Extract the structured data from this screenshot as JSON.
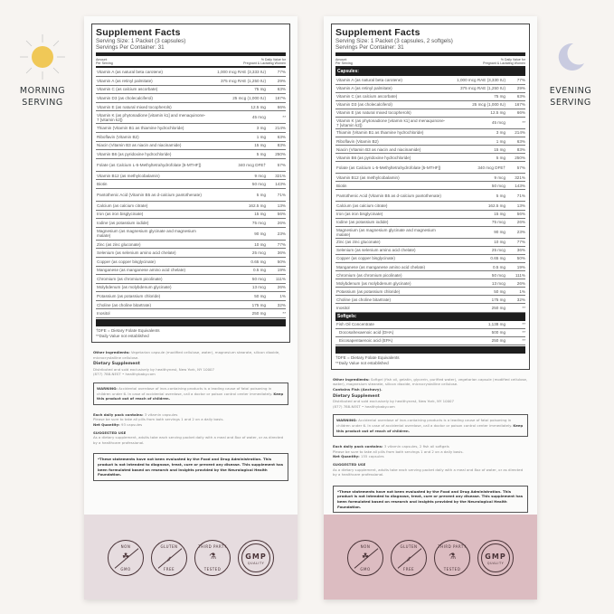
{
  "colors": {
    "left_band": "#e6dcdf",
    "right_band": "#dcbcc1",
    "sun": "#f0c857",
    "moon": "#c9cbe0"
  },
  "morning": {
    "icon": "sun-icon",
    "line1": "MORNING",
    "line2": "SERVING"
  },
  "evening": {
    "icon": "moon-icon",
    "line1": "EVENING",
    "line2": "SERVING"
  },
  "panels": [
    {
      "title": "Supplement Facts",
      "serving_size": "Serving Size: 1 Packet (3 capsules)",
      "servings": "Servings Per Container: 31",
      "hdr_left1": "Amount",
      "hdr_left2": "Per Serving",
      "hdr_right1": "% Daily Value for",
      "hdr_right2": "Pregnant & Lactating Women",
      "sections": [
        {
          "label": "",
          "rows": [
            [
              "Vitamin A (as natural beta carotene)",
              "1,000 mcg RAE (3,333 IU)",
              "77%"
            ],
            [
              "Vitamin A (as retinyl palmitate)",
              "375 mcg RAE (1,250 IU)",
              "29%"
            ],
            [
              "Vitamin C (as calcium ascorbate)",
              "75 mg",
              "63%"
            ],
            [
              "Vitamin D3 (as cholecalciferol)",
              "25 mcg (1,000 IU)",
              "167%"
            ],
            [
              "Vitamin E (as natural mixed tocopherols)",
              "12.5 mg",
              "66%"
            ],
            [
              "Vitamin K (as phytonadione [vitamin k1] and menaquinone-7 [vitamin k2])",
              "45 mcg",
              "**"
            ],
            [
              "Thiamin (Vitamin B1 as thiamine hydrochloride)",
              "3 mg",
              "214%"
            ],
            [
              "Riboflavin (Vitamin B2)",
              "1 mg",
              "63%"
            ],
            [
              "Niacin (Vitamin B3 as niacin and niacinamide)",
              "15 mg",
              "83%"
            ],
            [
              "Vitamin B6 (as pyridoxine hydrochloride)",
              "5 mg",
              "250%"
            ],
            [
              "Folate (as Calcium L-5-Methyltetrahydrofolate [5-MTHF])",
              "340 mcg DFE†",
              "57%"
            ],
            [
              "Vitamin B12 (as methylcobalamin)",
              "9 mcg",
              "321%"
            ],
            [
              "Biotin",
              "50 mcg",
              "143%"
            ],
            [
              "Pantothenic Acid (Vitamin B5 as d-calcium pantothenate)",
              "5 mg",
              "71%"
            ],
            [
              "Calcium (as calcium citrate)",
              "162.5 mg",
              "13%"
            ],
            [
              "Iron (as iron bisglycinate)",
              "15 mg",
              "56%"
            ],
            [
              "Iodine (as potassium iodide)",
              "75 mcg",
              "26%"
            ],
            [
              "Magnesium (as magnesium glycinate and magnesium malate)",
              "90 mg",
              "23%"
            ],
            [
              "Zinc (as zinc gluconate)",
              "10 mg",
              "77%"
            ],
            [
              "Selenium (as selenium amino acid chelate)",
              "25 mcg",
              "36%"
            ],
            [
              "Copper (as copper bisglycinate)",
              "0.65 mg",
              "50%"
            ],
            [
              "Manganese (as manganese amino acid chelate)",
              "0.5 mg",
              "19%"
            ],
            [
              "Chromium (as chromium picolinate)",
              "50 mcg",
              "111%"
            ],
            [
              "Molybdenum (as molybdenum glycinate)",
              "13 mcg",
              "26%"
            ],
            [
              "Potassium (as potassium chloride)",
              "50 mg",
              "1%"
            ],
            [
              "Choline (as choline bitartrate)",
              "175 mg",
              "32%"
            ],
            [
              "Inositol",
              "250 mg",
              "**"
            ]
          ]
        }
      ],
      "footnote1": "†DFE = Dietary Folate Equivalents",
      "footnote2": "**Daily Value not established",
      "other_label": "Other Ingredients:",
      "other_text": "Vegetarian capsule (modified cellulose, water), magnesium stearate, silicon dioxide, microcrystalline cellulose.",
      "contains": "",
      "dietary": "Dietary Supplement",
      "distributed": "Distributed and sold exclusively by healthynest, New York, NY 10007",
      "contact": "(877) 788-NEST  •  healthybaby.com",
      "warning_label": "WARNING:",
      "warning_text": "Accidental overdose of iron-containing products is a leading cause of fatal poisoning in children under 6. In case of accidental overdose, call a doctor or poison control center immediately.",
      "warning_bold": "Keep this product out of reach of children.",
      "pack_label": "Each daily pack contains:",
      "pack_text": "3 vitamin capsules",
      "please": "Please be sure to take all pills from both servings 1 and 2 on a daily basis.",
      "net_label": "Net Quantity:",
      "net_text": "93 capsules",
      "use_title": "SUGGESTED USE",
      "use_text": "As a dietary supplement, adults take each serving packet daily with a meal and 8oz of water, or as directed by a healthcare professional.",
      "fda": "*These statements have not been evaluated by the Food and Drug Administration. This product is not intended to diagnose, treat, cure or prevent any disease. This supplement has been formulated based on research and insights provided by the Neurological Health Foundation."
    },
    {
      "title": "Supplement Facts",
      "serving_size": "Serving Size: 1 Packet (3 capsules, 2 softgels)",
      "servings": "Servings Per Container: 31",
      "hdr_left1": "Amount",
      "hdr_left2": "Per Serving",
      "hdr_right1": "% Daily Value for",
      "hdr_right2": "Pregnant & Lactating Women",
      "sections": [
        {
          "label": "Capsules:",
          "rows": [
            [
              "Vitamin A (as natural beta carotene)",
              "1,000 mcg RAE (3,330 IU)",
              "77%"
            ],
            [
              "Vitamin A (as retinyl palmitate)",
              "375 mcg RAE (1,250 IU)",
              "29%"
            ],
            [
              "Vitamin C (as calcium ascorbate)",
              "75 mg",
              "63%"
            ],
            [
              "Vitamin D3 (as cholecalciferol)",
              "25 mcg (1,000 IU)",
              "167%"
            ],
            [
              "Vitamin E (as natural mixed tocopherols)",
              "12.5 mg",
              "66%"
            ],
            [
              "Vitamin K (as phytonadione [vitamin k1] and menaquinone-7 [vitamin k2])",
              "45 mcg",
              "**"
            ],
            [
              "Thiamin (Vitamin B1 as thiamine hydrochloride)",
              "3 mg",
              "214%"
            ],
            [
              "Riboflavin (Vitamin B2)",
              "1 mg",
              "63%"
            ],
            [
              "Niacin (Vitamin B3 as niacin and niacinamide)",
              "15 mg",
              "83%"
            ],
            [
              "Vitamin B6 (as pyridoxine hydrochloride)",
              "5 mg",
              "250%"
            ],
            [
              "Folate (as Calcium L-5-Methyltetrahydrofolate [5-MTHF])",
              "340 mcg DFE†",
              "57%"
            ],
            [
              "Vitamin B12 (as methylcobalamin)",
              "9 mcg",
              "321%"
            ],
            [
              "Biotin",
              "50 mcg",
              "143%"
            ],
            [
              "Pantothenic Acid (Vitamin B5 as d-calcium pantothenate)",
              "5 mg",
              "71%"
            ],
            [
              "Calcium (as calcium citrate)",
              "162.5 mg",
              "13%"
            ],
            [
              "Iron (as iron bisglycinate)",
              "15 mg",
              "56%"
            ],
            [
              "Iodine (as potassium iodide)",
              "75 mcg",
              "26%"
            ],
            [
              "Magnesium (as magnesium glycinate and magnesium malate)",
              "90 mg",
              "23%"
            ],
            [
              "Zinc (as zinc gluconate)",
              "10 mg",
              "77%"
            ],
            [
              "Selenium (as selenium amino acid chelate)",
              "25 mcg",
              "36%"
            ],
            [
              "Copper (as copper bisglycinate)",
              "0.65 mg",
              "50%"
            ],
            [
              "Manganese (as manganese amino acid chelate)",
              "0.5 mg",
              "19%"
            ],
            [
              "Chromium (as chromium picolinate)",
              "50 mcg",
              "111%"
            ],
            [
              "Molybdenum (as molybdenum glycinate)",
              "13 mcg",
              "26%"
            ],
            [
              "Potassium (as potassium chloride)",
              "50 mg",
              "1%"
            ],
            [
              "Choline (as choline bitartrate)",
              "175 mg",
              "32%"
            ],
            [
              "Inositol",
              "250 mg",
              "**"
            ]
          ]
        },
        {
          "label": "Softgels:",
          "rows": [
            [
              "Fish Oil Concentrate",
              "1,138 mg",
              "**"
            ],
            [
              "  Docosahexaenoic acid (DHA)",
              "500 mg",
              "**"
            ],
            [
              "  Eicosapentaenoic acid (EPA)",
              "250 mg",
              "**"
            ]
          ]
        }
      ],
      "footnote1": "†DFE = Dietary Folate Equivalents",
      "footnote2": "**Daily Value not established",
      "other_label": "Other Ingredients:",
      "other_text": "Softgel (fish oil, gelatin, glycerin, purified water), vegetarian capsule (modified cellulose, water), magnesium stearate, silicon dioxide, microcrystalline cellulose.",
      "contains": "Contains Fish (Anchovy).",
      "dietary": "Dietary Supplement",
      "distributed": "Distributed and sold exclusively by healthynest, New York, NY 10007",
      "contact": "(877) 788-NEST  •  healthybaby.com",
      "warning_label": "WARNING:",
      "warning_text": "Accidental overdose of iron-containing products is a leading cause of fatal poisoning in children under 6. In case of accidental overdose, call a doctor or poison control center immediately.",
      "warning_bold": "Keep this product out of reach of children.",
      "pack_label": "Each daily pack contains:",
      "pack_text": "3 vitamin capsules, 2 fish oil softgels",
      "please": "Please be sure to take all pills from both servings 1 and 2 on a daily basis.",
      "net_label": "Net Quantity:",
      "net_text": "155 capsules",
      "use_title": "SUGGESTED USE",
      "use_text": "As a dietary supplement, adults take each serving packet daily with a meal and 8oz of water, or as directed by a healthcare professional.",
      "fda": "*These statements have not been evaluated by the Food and Drug Administration. This product is not intended to diagnose, treat, cure or prevent any disease. This supplement has been formulated based on research and insights provided by the Neurological Health Foundation."
    }
  ],
  "badges": [
    {
      "icon": "sprout-icon",
      "top": "NON",
      "bottom": "GMO"
    },
    {
      "icon": "wheat-icon",
      "top": "GLUTEN",
      "bottom": "FREE"
    },
    {
      "icon": "flask-check-icon",
      "top": "THIRD PARTY",
      "bottom": "TESTED"
    },
    {
      "icon": "gmp-seal-icon",
      "top": "GMP",
      "bottom": "QUALITY"
    }
  ]
}
